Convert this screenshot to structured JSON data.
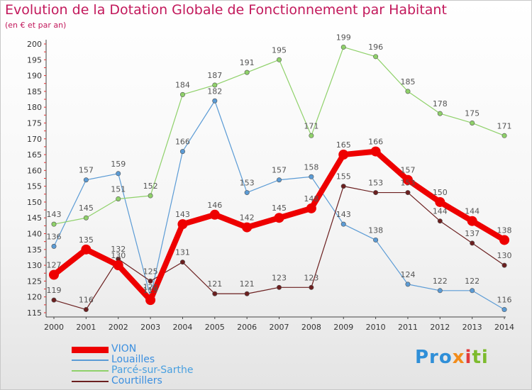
{
  "header": {
    "title": "Evolution de la Dotation Globale de Fonctionnement par Habitant",
    "subtitle": "(en € et par an)"
  },
  "logo": {
    "text": "Proxiti",
    "parts": [
      "Pro",
      "x",
      "i",
      "ti"
    ]
  },
  "chart_data": {
    "type": "line",
    "title": "Evolution de la Dotation Globale de Fonctionnement par Habitant",
    "subtitle": "(en € et par an)",
    "xlabel": "",
    "ylabel": "",
    "x": [
      "2000",
      "2001",
      "2002",
      "2003",
      "2004",
      "2005",
      "2006",
      "2007",
      "2008",
      "2009",
      "2010",
      "2011",
      "2012",
      "2013",
      "2014"
    ],
    "ylim": [
      115,
      200
    ],
    "yticks": [
      115,
      120,
      125,
      130,
      135,
      140,
      145,
      150,
      155,
      160,
      165,
      170,
      175,
      180,
      185,
      190,
      195,
      200
    ],
    "grid": false,
    "legend_position": "bottom-left",
    "series": [
      {
        "name": "VION",
        "color": "#ee0000",
        "values": [
          127,
          135,
          130,
          119,
          143,
          146,
          142,
          145,
          148,
          165,
          166,
          157,
          150,
          144,
          138
        ]
      },
      {
        "name": "Louailles",
        "color": "#5b9bd5",
        "values": [
          136,
          157,
          159,
          120,
          166,
          182,
          153,
          157,
          158,
          143,
          138,
          124,
          122,
          122,
          116
        ]
      },
      {
        "name": "Parcé-sur-Sarthe",
        "color": "#8fd16a",
        "values": [
          143,
          145,
          151,
          152,
          184,
          187,
          191,
          195,
          171,
          199,
          196,
          185,
          178,
          175,
          171
        ]
      },
      {
        "name": "Courtillers",
        "color": "#6b1f1f",
        "values": [
          119,
          116,
          132,
          125,
          131,
          121,
          121,
          123,
          123,
          155,
          153,
          153,
          144,
          137,
          130
        ]
      }
    ]
  }
}
